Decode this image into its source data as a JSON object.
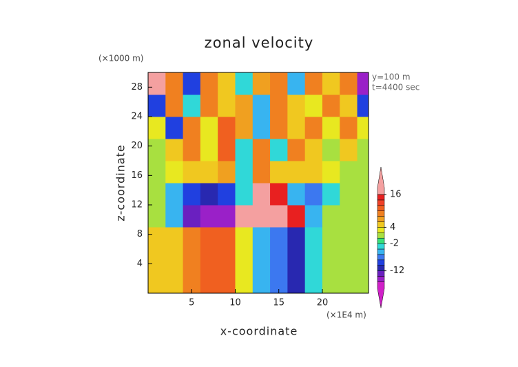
{
  "chart_data": {
    "type": "contour",
    "title": "zonal velocity",
    "x_label": "x-coordinate",
    "y_label": "z-coordinate",
    "x_unit": "(×1E4 m)",
    "y_unit": "(×1000 m)",
    "annotations": [
      "y=100 m",
      "t=4400 sec"
    ],
    "xlim": [
      0,
      25.3
    ],
    "ylim": [
      0,
      30
    ],
    "xticks": [
      5,
      10,
      15,
      20
    ],
    "yticks": [
      4,
      8,
      12,
      16,
      20,
      24,
      28
    ],
    "x": [
      1,
      3,
      5,
      7,
      9,
      11,
      13,
      15,
      17,
      19,
      21,
      23,
      25
    ],
    "y": [
      1.5,
      4.5,
      7.5,
      10.5,
      13.5,
      16.5,
      19.5,
      22.5,
      25.5,
      28.5
    ],
    "z": [
      [
        5,
        5,
        9,
        11,
        11,
        3,
        -6,
        -8,
        -12,
        -4,
        1,
        1,
        1
      ],
      [
        5,
        5,
        9,
        11,
        11,
        3,
        -6,
        -8,
        -12,
        -4,
        1,
        1,
        1
      ],
      [
        5,
        5,
        9,
        11,
        10,
        2,
        -6,
        -8,
        -11,
        -4,
        1,
        1,
        1
      ],
      [
        1,
        -6,
        -14,
        -16,
        -15,
        17,
        17,
        17,
        15,
        -6,
        1,
        1,
        1
      ],
      [
        1,
        -6,
        -10,
        -12,
        -10,
        -3,
        17,
        15,
        -6,
        -8,
        -4,
        1,
        1
      ],
      [
        1,
        3,
        5,
        5,
        7,
        -4,
        9,
        5,
        5,
        5,
        3,
        1,
        1
      ],
      [
        1,
        5,
        9,
        3,
        11,
        -4,
        9,
        -3,
        9,
        5,
        1,
        5,
        1
      ],
      [
        3,
        -10,
        9,
        3,
        11,
        7,
        -5,
        9,
        5,
        9,
        3,
        9,
        3
      ],
      [
        -10,
        9,
        -3,
        9,
        5,
        7,
        -5,
        9,
        5,
        3,
        9,
        5,
        -10
      ],
      [
        17,
        9,
        -10,
        9,
        5,
        -3,
        7,
        9,
        -6,
        9,
        5,
        9,
        -15
      ]
    ],
    "colorbar": {
      "levels": [
        -16,
        -14,
        -12,
        -10,
        -8,
        -6,
        -4,
        -2,
        0,
        2,
        4,
        6,
        8,
        10,
        12,
        14,
        16
      ],
      "colors": [
        "#d020c8",
        "#9a20c8",
        "#6a20c0",
        "#2828b0",
        "#2040e0",
        "#3c78f0",
        "#38b4f0",
        "#30d8d8",
        "#38e078",
        "#a8e040",
        "#e8e820",
        "#f0c820",
        "#f0a020",
        "#f08020",
        "#f06020",
        "#f04028",
        "#e82020",
        "#f4a0a0"
      ],
      "ticks": [
        16,
        4,
        -2,
        -12
      ]
    }
  }
}
